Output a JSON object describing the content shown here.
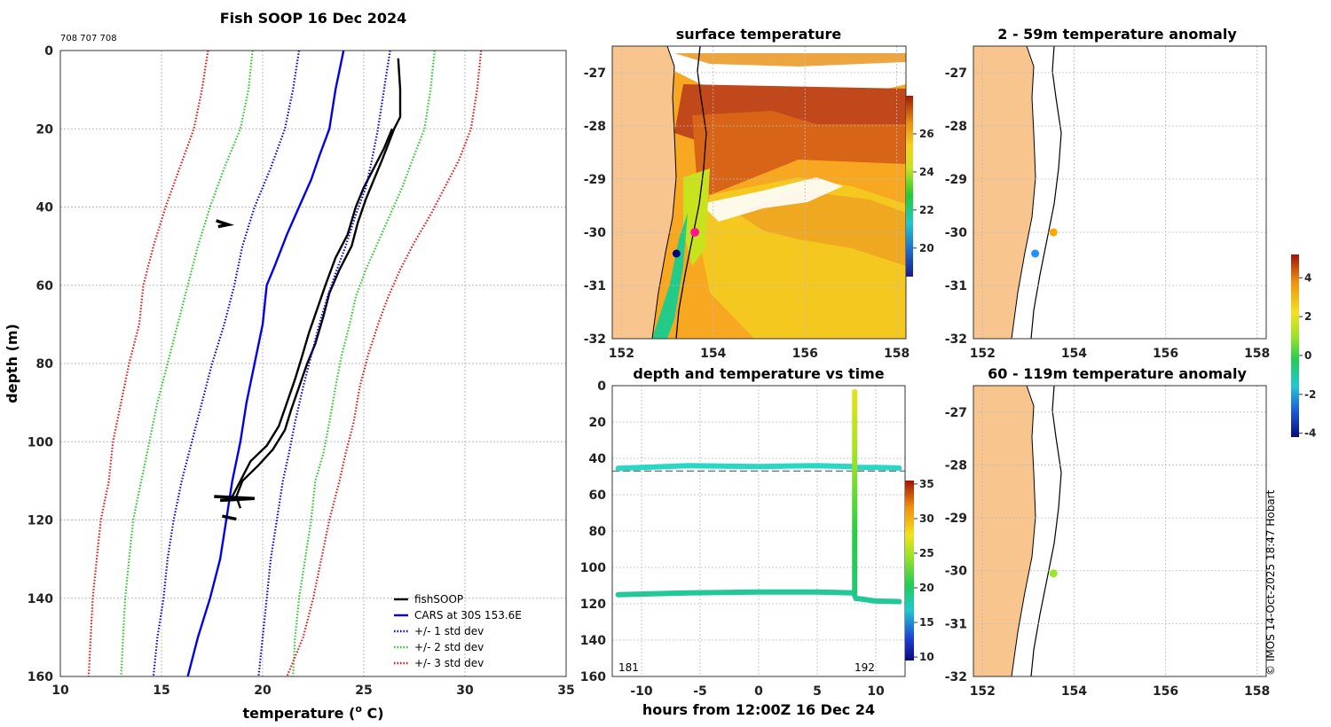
{
  "colors": {
    "land": "#f9c58f",
    "fish": "#000000",
    "cars": "#0000ee",
    "sd1": "#0000ee",
    "sd2": "#22cc22",
    "sd3": "#ee1111",
    "highlight": "#ff1493"
  },
  "chart_data": [
    {
      "id": "profile",
      "type": "line",
      "title": "Fish SOOP 16 Dec 2024",
      "subtitle": "708 707 708",
      "xlabel": "temperature (",
      "xlabel_sup": "o",
      "xlabel_end": " C)",
      "ylabel": "depth (m)",
      "xlim": [
        10,
        35
      ],
      "ylim": [
        0,
        160
      ],
      "xticks": [
        10,
        15,
        20,
        25,
        30,
        35
      ],
      "yticks": [
        0,
        20,
        40,
        60,
        80,
        100,
        120,
        140,
        160
      ],
      "series": [
        {
          "name": "fishSOOP",
          "style": "solid",
          "color": "#000000",
          "points": [
            [
              26.7,
              2
            ],
            [
              26.8,
              10
            ],
            [
              26.8,
              17
            ],
            [
              26.5,
              20
            ],
            [
              26.2,
              24
            ],
            [
              25.9,
              28
            ],
            [
              25.5,
              33
            ],
            [
              25.1,
              38
            ],
            [
              24.7,
              44
            ],
            [
              24.4,
              50
            ],
            [
              23.8,
              56
            ],
            [
              23.3,
              62
            ],
            [
              23.0,
              68
            ],
            [
              22.6,
              75
            ],
            [
              22.2,
              80
            ],
            [
              21.8,
              86
            ],
            [
              21.4,
              92
            ],
            [
              21.1,
              97
            ],
            [
              20.5,
              102
            ],
            [
              19.8,
              106
            ],
            [
              19.0,
              110
            ],
            [
              18.7,
              114
            ],
            [
              18.9,
              117
            ]
          ]
        },
        {
          "name": "fishSOOP-2",
          "style": "solid",
          "color": "#000000",
          "nolegend": true,
          "points": [
            [
              26.4,
              20
            ],
            [
              26.0,
              25
            ],
            [
              25.5,
              30
            ],
            [
              25.0,
              35
            ],
            [
              24.6,
              40
            ],
            [
              24.2,
              47
            ],
            [
              23.6,
              53
            ],
            [
              23.1,
              60
            ],
            [
              22.7,
              66
            ],
            [
              22.3,
              72
            ],
            [
              21.9,
              79
            ],
            [
              21.6,
              84
            ],
            [
              21.2,
              90
            ],
            [
              20.8,
              96
            ],
            [
              20.2,
              101
            ],
            [
              19.4,
              105
            ],
            [
              18.9,
              110
            ],
            [
              18.5,
              114
            ]
          ]
        },
        {
          "name": "CARS at 30S 153.6E",
          "style": "solid",
          "color": "#0000ee",
          "points": [
            [
              24.0,
              0
            ],
            [
              23.6,
              10
            ],
            [
              23.3,
              20
            ],
            [
              22.8,
              27
            ],
            [
              22.4,
              33
            ],
            [
              21.8,
              40
            ],
            [
              21.2,
              47
            ],
            [
              20.6,
              55
            ],
            [
              20.2,
              60
            ],
            [
              20.0,
              70
            ],
            [
              19.6,
              80
            ],
            [
              19.2,
              90
            ],
            [
              18.9,
              100
            ],
            [
              18.5,
              110
            ],
            [
              18.2,
              120
            ],
            [
              17.9,
              130
            ],
            [
              17.4,
              140
            ],
            [
              16.8,
              150
            ],
            [
              16.3,
              160
            ]
          ]
        },
        {
          "name": "+/- 1 std dev",
          "style": "dotted",
          "color": "#0000ee",
          "points": [
            [
              21.8,
              0
            ],
            [
              21.5,
              10
            ],
            [
              21.1,
              20
            ],
            [
              20.4,
              30
            ],
            [
              19.6,
              40
            ],
            [
              19.0,
              50
            ],
            [
              18.6,
              60
            ],
            [
              18.1,
              70
            ],
            [
              17.5,
              80
            ],
            [
              17.0,
              90
            ],
            [
              16.5,
              100
            ],
            [
              16.0,
              110
            ],
            [
              15.6,
              120
            ],
            [
              15.3,
              130
            ],
            [
              15.1,
              140
            ],
            [
              14.8,
              150
            ],
            [
              14.6,
              160
            ]
          ]
        },
        {
          "name": "+/- 1 std dev upper",
          "style": "dotted",
          "color": "#0000ee",
          "nolegend": true,
          "points": [
            [
              26.3,
              0
            ],
            [
              26.0,
              10
            ],
            [
              25.7,
              20
            ],
            [
              25.4,
              28
            ],
            [
              25.1,
              35
            ],
            [
              24.6,
              42
            ],
            [
              24.1,
              50
            ],
            [
              23.6,
              57
            ],
            [
              23.2,
              63
            ],
            [
              22.8,
              70
            ],
            [
              22.4,
              78
            ],
            [
              22.0,
              86
            ],
            [
              21.6,
              95
            ],
            [
              21.3,
              103
            ],
            [
              21.0,
              110
            ],
            [
              20.7,
              120
            ],
            [
              20.4,
              130
            ],
            [
              20.2,
              140
            ],
            [
              20.0,
              150
            ],
            [
              19.8,
              160
            ]
          ]
        },
        {
          "name": "+/- 2 std dev",
          "style": "dotted",
          "color": "#22cc22",
          "points": [
            [
              19.5,
              0
            ],
            [
              19.3,
              10
            ],
            [
              18.9,
              20
            ],
            [
              18.1,
              30
            ],
            [
              17.4,
              40
            ],
            [
              16.8,
              50
            ],
            [
              16.3,
              60
            ],
            [
              15.8,
              70
            ],
            [
              15.3,
              80
            ],
            [
              14.8,
              90
            ],
            [
              14.4,
              100
            ],
            [
              14.0,
              110
            ],
            [
              13.6,
              120
            ],
            [
              13.4,
              130
            ],
            [
              13.2,
              140
            ],
            [
              13.1,
              150
            ],
            [
              13.0,
              160
            ]
          ]
        },
        {
          "name": "+/- 2 std dev upper",
          "style": "dotted",
          "color": "#22cc22",
          "nolegend": true,
          "points": [
            [
              28.5,
              0
            ],
            [
              28.3,
              10
            ],
            [
              28.0,
              20
            ],
            [
              27.4,
              28
            ],
            [
              26.9,
              35
            ],
            [
              26.3,
              42
            ],
            [
              25.7,
              49
            ],
            [
              25.1,
              56
            ],
            [
              24.6,
              63
            ],
            [
              24.3,
              70
            ],
            [
              23.9,
              78
            ],
            [
              23.6,
              86
            ],
            [
              23.3,
              95
            ],
            [
              23.0,
              103
            ],
            [
              22.6,
              110
            ],
            [
              22.4,
              120
            ],
            [
              22.1,
              130
            ],
            [
              21.8,
              140
            ],
            [
              21.6,
              150
            ],
            [
              21.5,
              160
            ]
          ]
        },
        {
          "name": "+/- 3 std dev",
          "style": "dotted",
          "color": "#ee1111",
          "points": [
            [
              17.3,
              0
            ],
            [
              17.0,
              10
            ],
            [
              16.6,
              20
            ],
            [
              15.9,
              30
            ],
            [
              15.2,
              40
            ],
            [
              14.6,
              50
            ],
            [
              14.1,
              60
            ],
            [
              13.9,
              70
            ],
            [
              13.4,
              80
            ],
            [
              13.0,
              90
            ],
            [
              12.6,
              100
            ],
            [
              12.4,
              110
            ],
            [
              12.0,
              120
            ],
            [
              11.8,
              130
            ],
            [
              11.6,
              140
            ],
            [
              11.5,
              150
            ],
            [
              11.4,
              160
            ]
          ]
        },
        {
          "name": "+/- 3 std dev upper",
          "style": "dotted",
          "color": "#ee1111",
          "nolegend": true,
          "points": [
            [
              30.8,
              0
            ],
            [
              30.6,
              10
            ],
            [
              30.3,
              20
            ],
            [
              29.7,
              28
            ],
            [
              29.0,
              35
            ],
            [
              28.3,
              42
            ],
            [
              27.5,
              49
            ],
            [
              26.8,
              56
            ],
            [
              26.2,
              63
            ],
            [
              25.7,
              70
            ],
            [
              25.2,
              78
            ],
            [
              24.8,
              86
            ],
            [
              24.5,
              95
            ],
            [
              24.1,
              103
            ],
            [
              23.8,
              110
            ],
            [
              23.3,
              120
            ],
            [
              22.9,
              130
            ],
            [
              22.5,
              140
            ],
            [
              22.0,
              150
            ],
            [
              21.2,
              160
            ]
          ]
        }
      ],
      "clusters": [
        {
          "points": [
            [
              17.7,
              43.5
            ],
            [
              18.3,
              44.5
            ],
            [
              17.8,
              45
            ]
          ]
        },
        {
          "points": [
            [
              17.6,
              114
            ],
            [
              19.6,
              114.5
            ],
            [
              17.9,
              115
            ]
          ]
        },
        {
          "points": [
            [
              18.0,
              119
            ],
            [
              18.7,
              119.8
            ]
          ]
        }
      ],
      "legend_placement": "bottom-right"
    },
    {
      "id": "sst",
      "type": "heatmap",
      "title": "surface temperature",
      "xlim": [
        151.8,
        158.2
      ],
      "ylim": [
        -32,
        -26.5
      ],
      "xticks": [
        152,
        154,
        156,
        158
      ],
      "yticks": [
        -27,
        -28,
        -29,
        -30,
        -31,
        -32
      ],
      "colorbar": {
        "min": 18.5,
        "max": 28.0,
        "ticks": [
          20,
          22,
          24,
          26
        ]
      },
      "markers": [
        {
          "lon": 153.6,
          "lat": -30.0,
          "color": "#ff1493"
        },
        {
          "lon": 153.2,
          "lat": -30.4,
          "color": "#000080"
        }
      ]
    },
    {
      "id": "anom1",
      "type": "scatter",
      "title": "2 - 59m temperature anomaly",
      "xlim": [
        151.8,
        158.2
      ],
      "ylim": [
        -32,
        -26.5
      ],
      "xticks": [
        152,
        154,
        156,
        158
      ],
      "yticks": [
        -27,
        -28,
        -29,
        -30,
        -31,
        -32
      ],
      "markers": [
        {
          "lon": 153.55,
          "lat": -30.0,
          "color": "#ffa500"
        },
        {
          "lon": 153.15,
          "lat": -30.4,
          "color": "#1e90ff"
        }
      ]
    },
    {
      "id": "anom2",
      "type": "scatter",
      "title": "60 - 119m temperature anomaly",
      "xlim": [
        151.8,
        158.2
      ],
      "ylim": [
        -32,
        -26.5
      ],
      "xticks": [
        152,
        154,
        156,
        158
      ],
      "yticks": [
        -27,
        -28,
        -29,
        -30,
        -31,
        -32
      ],
      "markers": [
        {
          "lon": 153.55,
          "lat": -30.05,
          "color": "#9ae62a"
        }
      ]
    },
    {
      "id": "anomcb",
      "type": "colorbar",
      "min": -4.2,
      "max": 5.2,
      "ticks": [
        -4,
        -2,
        0,
        2,
        4
      ]
    },
    {
      "id": "timeseries",
      "type": "scatter",
      "title": "depth and temperature vs time",
      "xlabel": "hours from 12:00Z 16 Dec 24",
      "xlim": [
        -12.5,
        12.5
      ],
      "ylim": [
        0,
        160
      ],
      "xticks": [
        -10,
        -5,
        0,
        5,
        10
      ],
      "yticks": [
        0,
        20,
        40,
        60,
        80,
        100,
        120,
        140,
        160
      ],
      "annotations": [
        "181",
        "192"
      ],
      "dashed_depth": 47,
      "colorbar": {
        "min": 9.5,
        "max": 35.5,
        "ticks": [
          10,
          15,
          20,
          25,
          30,
          35
        ]
      },
      "tracks": [
        {
          "temp": 19.5,
          "points": [
            [
              -12,
              45.5
            ],
            [
              -6,
              44
            ],
            [
              0,
              44.5
            ],
            [
              5,
              44
            ],
            [
              8,
              44.5
            ],
            [
              8.2,
              45
            ],
            [
              10,
              45
            ],
            [
              12,
              45.3
            ]
          ]
        },
        {
          "temp": 19.0,
          "points": [
            [
              -12,
              115
            ],
            [
              -6,
              114
            ],
            [
              0,
              113.5
            ],
            [
              5,
              113.5
            ],
            [
              8.1,
              114
            ],
            [
              8.3,
              117
            ],
            [
              10,
              118.5
            ],
            [
              12,
              118.8
            ]
          ]
        }
      ],
      "cast": {
        "hour": 8.2,
        "depth_start": 2,
        "depth_end": 115,
        "temp_top": 28,
        "temp_bottom": 20
      }
    }
  ],
  "footer": {
    "credit": "© IMOS 14-Oct-2025 18:47 Hobart"
  }
}
